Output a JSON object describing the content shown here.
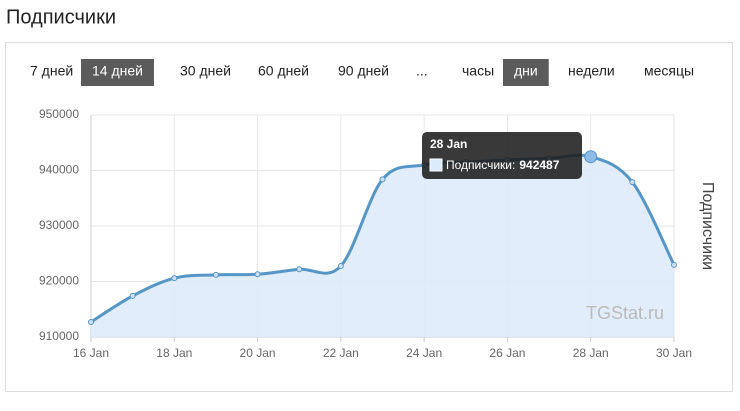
{
  "header": {
    "title": "Подписчики"
  },
  "range_buttons": [
    {
      "label": "7 дней",
      "active": false
    },
    {
      "label": "14 дней",
      "active": true
    },
    {
      "label": "30 дней",
      "active": false
    },
    {
      "label": "60 дней",
      "active": false
    },
    {
      "label": "90 дней",
      "active": false
    },
    {
      "label": "...",
      "active": false
    }
  ],
  "unit_buttons": [
    {
      "label": "часы",
      "active": false
    },
    {
      "label": "дни",
      "active": true
    },
    {
      "label": "недели",
      "active": false
    },
    {
      "label": "месяцы",
      "active": false
    }
  ],
  "watermark": "TGStat.ru",
  "tooltip": {
    "index": 12,
    "label": "Подписчики:"
  },
  "chart_data": {
    "type": "line",
    "y_axis_label": "Подписчики",
    "categories": [
      "16 Jan",
      null,
      "18 Jan",
      null,
      "20 Jan",
      null,
      "22 Jan",
      null,
      "24 Jan",
      null,
      "26 Jan",
      null,
      "28 Jan",
      null,
      "30 Jan"
    ],
    "series": [
      {
        "name": "Подписчики",
        "color": "#5596c6",
        "fill": "#ddeafb",
        "values": [
          912700,
          917400,
          920600,
          921200,
          921300,
          922200,
          922800,
          938400,
          941000,
          941500,
          941900,
          942200,
          942487,
          937900,
          923000
        ]
      }
    ],
    "ylim": [
      910000,
      950000
    ],
    "yticks": [
      910000,
      920000,
      930000,
      940000,
      950000
    ],
    "grid": true
  }
}
